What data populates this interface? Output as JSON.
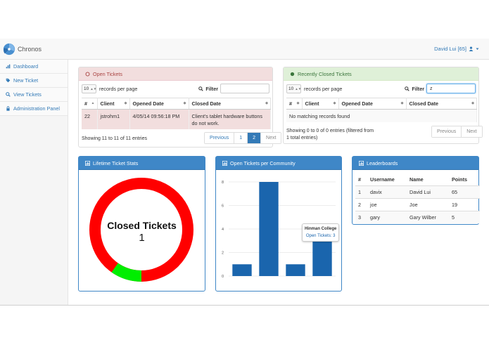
{
  "app": {
    "name": "Chronos"
  },
  "user": {
    "label": "David Lui [65]"
  },
  "sidebar": {
    "items": [
      {
        "label": "Dashboard",
        "icon": "dashboard-icon"
      },
      {
        "label": "New Ticket",
        "icon": "tag-icon"
      },
      {
        "label": "View Tickets",
        "icon": "search-icon"
      },
      {
        "label": "Administration Panel",
        "icon": "lock-icon"
      }
    ]
  },
  "open_tickets": {
    "title": "Open Tickets",
    "length_value": "10",
    "length_label": "records per page",
    "filter_label": "Filter",
    "filter_value": "",
    "columns": [
      "#",
      "Client",
      "Opened Date",
      "Closed Date"
    ],
    "rows": [
      {
        "num": "22",
        "client": "jstrohm1",
        "opened": "4/05/14 09:56:18 PM",
        "closed": "Client's tablet hardware buttons do not work."
      }
    ],
    "info": "Showing 11 to 11 of 11 entries",
    "pagination": [
      "Previous",
      "1",
      "2",
      "Next"
    ],
    "active_page": "2"
  },
  "closed_tickets": {
    "title": "Recently Closed Tickets",
    "length_value": "10",
    "length_label": "records per page",
    "filter_label": "Filter",
    "filter_value": "z",
    "columns": [
      "#",
      "Client",
      "Opened Date",
      "Closed Date"
    ],
    "empty_message": "No matching records found",
    "info_line1": "Showing 0 to 0 of 0 entries (filtered from",
    "info_line2": "1 total entries)",
    "pagination": [
      "Previous",
      "Next"
    ]
  },
  "lifetime_stats": {
    "title": "Lifetime Ticket Stats",
    "center_label": "Closed Tickets",
    "center_value": "1",
    "colors": {
      "closed": "#00ee00",
      "open": "#ff0000"
    }
  },
  "community_chart": {
    "title": "Open Tickets per Community",
    "tooltip": {
      "title": "Hinman College",
      "value_label": "Open Tickets: 3"
    }
  },
  "chart_data": {
    "type": "bar",
    "title": "Open Tickets per Community",
    "categories": [
      "",
      "",
      "",
      "Hinman College"
    ],
    "values": [
      1,
      8,
      1,
      3
    ],
    "yticks": [
      "0",
      "2",
      "4",
      "6",
      "8"
    ],
    "ylim": [
      0,
      8
    ],
    "grid": true,
    "color": "#1a65ad"
  },
  "leaderboards": {
    "title": "Leaderboards",
    "columns": [
      "#",
      "Username",
      "Name",
      "Points"
    ],
    "rows": [
      {
        "rank": "1",
        "username": "davix",
        "name": "David Lui",
        "points": "65"
      },
      {
        "rank": "2",
        "username": "joe",
        "name": "Joe",
        "points": "19"
      },
      {
        "rank": "3",
        "username": "gary",
        "name": "Gary Wilber",
        "points": "5"
      }
    ]
  }
}
